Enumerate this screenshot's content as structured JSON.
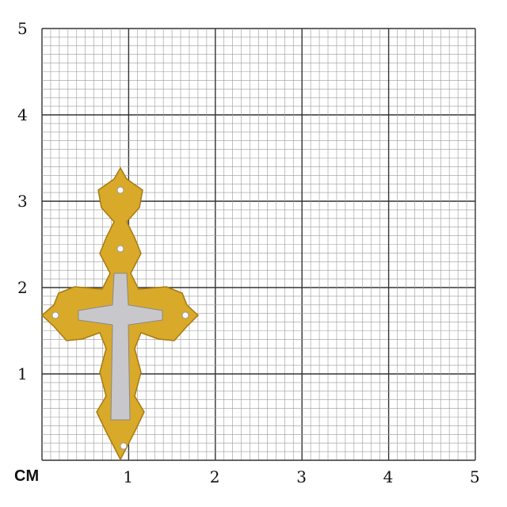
{
  "unit_label": "CM",
  "x_ticks": [
    "1",
    "2",
    "3",
    "4",
    "5"
  ],
  "y_ticks": [
    "1",
    "2",
    "3",
    "4",
    "5"
  ],
  "grid": {
    "major_cm": 1,
    "minor_mm": 1,
    "extent_cm": 5
  },
  "product": {
    "description_icon": "cross-pendant",
    "colors": {
      "gold": "#d9a92a",
      "silver": "#c8c8cc"
    }
  }
}
